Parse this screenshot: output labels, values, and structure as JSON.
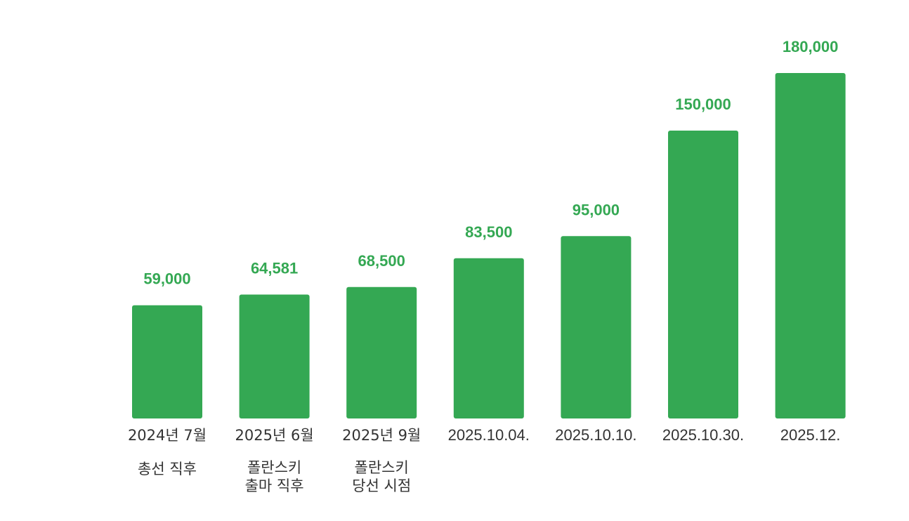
{
  "chart_data": {
    "type": "bar",
    "title": "",
    "xlabel": "",
    "ylabel": "",
    "ylim": [
      0,
      180000
    ],
    "grid": false,
    "legend": "none",
    "bar_color": "#34a853",
    "label_color": "#34a853",
    "text_color": "#333333",
    "categories": [
      "2024년 7월",
      "2025년 6월",
      "2025년 9월",
      "2025.10.04.",
      "2025.10.10.",
      "2025.10.30.",
      "2025.12."
    ],
    "values": [
      59000,
      64581,
      68500,
      83500,
      95000,
      150000,
      180000
    ],
    "value_labels": [
      "59,000",
      "64,581",
      "68,500",
      "83,500",
      "95,000",
      "150,000",
      "180,000"
    ],
    "annotations": [
      [
        "총선 직후"
      ],
      [
        "폴란스키",
        "출마 직후"
      ],
      [
        "폴란스키",
        "당선 시점"
      ],
      [],
      [],
      [],
      []
    ]
  }
}
